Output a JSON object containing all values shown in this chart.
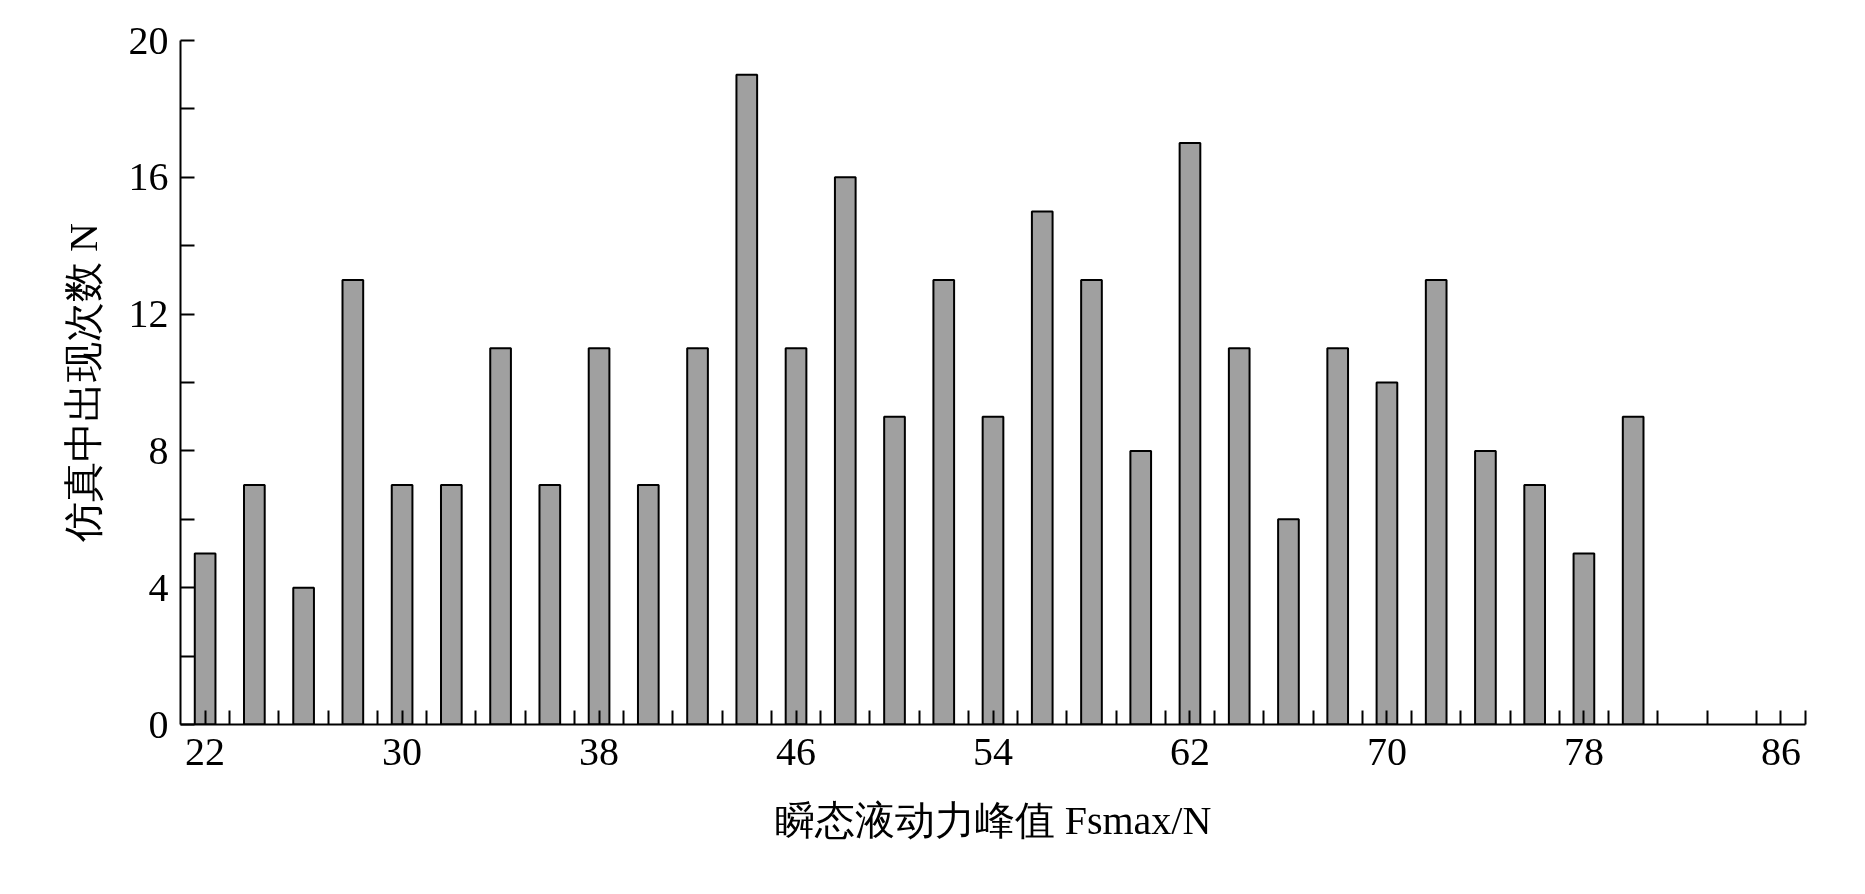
{
  "chart_data": {
    "type": "bar",
    "xlabel": "瞬态液动力峰值 Fsmax/N",
    "ylabel": "仿真中出现次数 N",
    "x": [
      22,
      24,
      26,
      28,
      30,
      32,
      34,
      36,
      38,
      40,
      42,
      44,
      46,
      48,
      50,
      52,
      54,
      56,
      58,
      60,
      62,
      64,
      66,
      68,
      70,
      72,
      74,
      76,
      78,
      80
    ],
    "values": [
      5,
      7,
      4,
      13,
      7,
      7,
      11,
      7,
      11,
      7,
      11,
      19,
      11,
      16,
      9,
      13,
      9,
      15,
      13,
      8,
      17,
      11,
      6,
      11,
      10,
      13,
      8,
      7,
      5,
      9
    ],
    "color": "#a0a0a0",
    "xlim": [
      21,
      87
    ],
    "xticks": [
      22,
      30,
      38,
      46,
      54,
      62,
      70,
      78,
      86
    ],
    "ylim": [
      0,
      20
    ],
    "yticks": [
      0,
      4,
      8,
      12,
      16,
      20
    ]
  }
}
